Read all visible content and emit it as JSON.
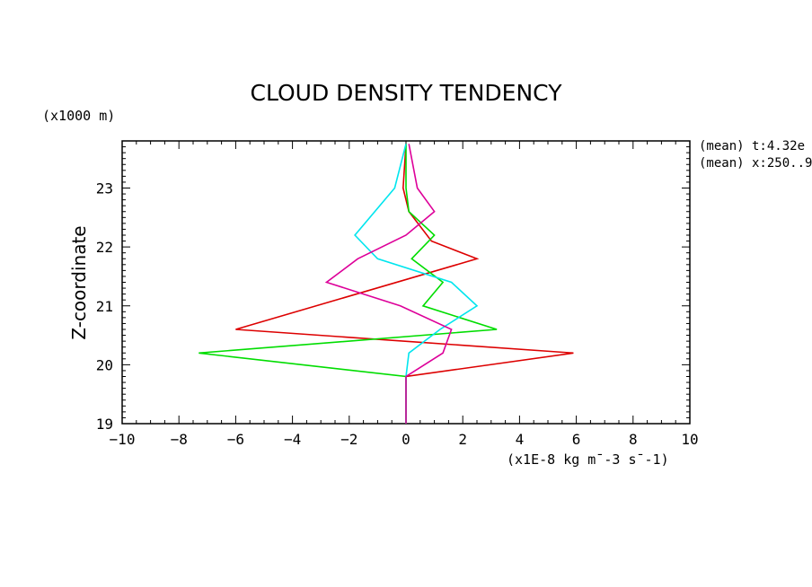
{
  "chart_data": {
    "type": "line",
    "title": "CLOUD DENSITY TENDENCY",
    "xlabel": "(x1E-8 kg m¯-3 s¯-1)",
    "ylabel": "Z-coordinate",
    "yunit": "(x1000 m)",
    "xlim": [
      -10,
      10
    ],
    "ylim": [
      19,
      23.8
    ],
    "xticks": [
      "-10",
      "-8",
      "-6",
      "-4",
      "-2",
      "0",
      "2",
      "4",
      "6",
      "8",
      "10"
    ],
    "yticks": [
      "19",
      "20",
      "21",
      "22",
      "23"
    ],
    "side_notes": [
      "(mean) t:4.32e",
      "(mean) x:250..9"
    ],
    "grid": false,
    "series": [
      {
        "color": "#dd0000",
        "x": [
          0,
          0,
          0,
          5.9,
          -6.0,
          2.5,
          0.9,
          0.1,
          -0.1,
          0.0
        ],
        "y": [
          19.0,
          19.8,
          19.8,
          20.2,
          20.6,
          21.8,
          22.1,
          22.6,
          23.0,
          23.75
        ]
      },
      {
        "color": "#00dd00",
        "x": [
          0,
          0,
          0,
          -7.3,
          3.2,
          0.6,
          1.3,
          0.2,
          1.0,
          0.1,
          0.0,
          0.0
        ],
        "y": [
          19.0,
          19.8,
          19.8,
          20.2,
          20.6,
          21.0,
          21.4,
          21.8,
          22.2,
          22.6,
          23.0,
          23.75
        ]
      },
      {
        "color": "#00e5ee",
        "x": [
          0,
          0,
          0,
          0.1,
          1.2,
          2.5,
          1.6,
          -1.0,
          -1.8,
          -0.4,
          0.0
        ],
        "y": [
          19.0,
          19.8,
          19.8,
          20.2,
          20.6,
          21.0,
          21.4,
          21.8,
          22.2,
          23.0,
          23.75
        ]
      },
      {
        "color": "#dd0099",
        "x": [
          0,
          0,
          0,
          1.3,
          1.6,
          -0.2,
          -1.5,
          -2.8,
          -1.7,
          0.0,
          1.0,
          0.4,
          0.1
        ],
        "y": [
          19.0,
          19.8,
          19.8,
          20.2,
          20.6,
          21.0,
          21.2,
          21.4,
          21.8,
          22.2,
          22.6,
          23.0,
          23.75
        ]
      }
    ]
  }
}
